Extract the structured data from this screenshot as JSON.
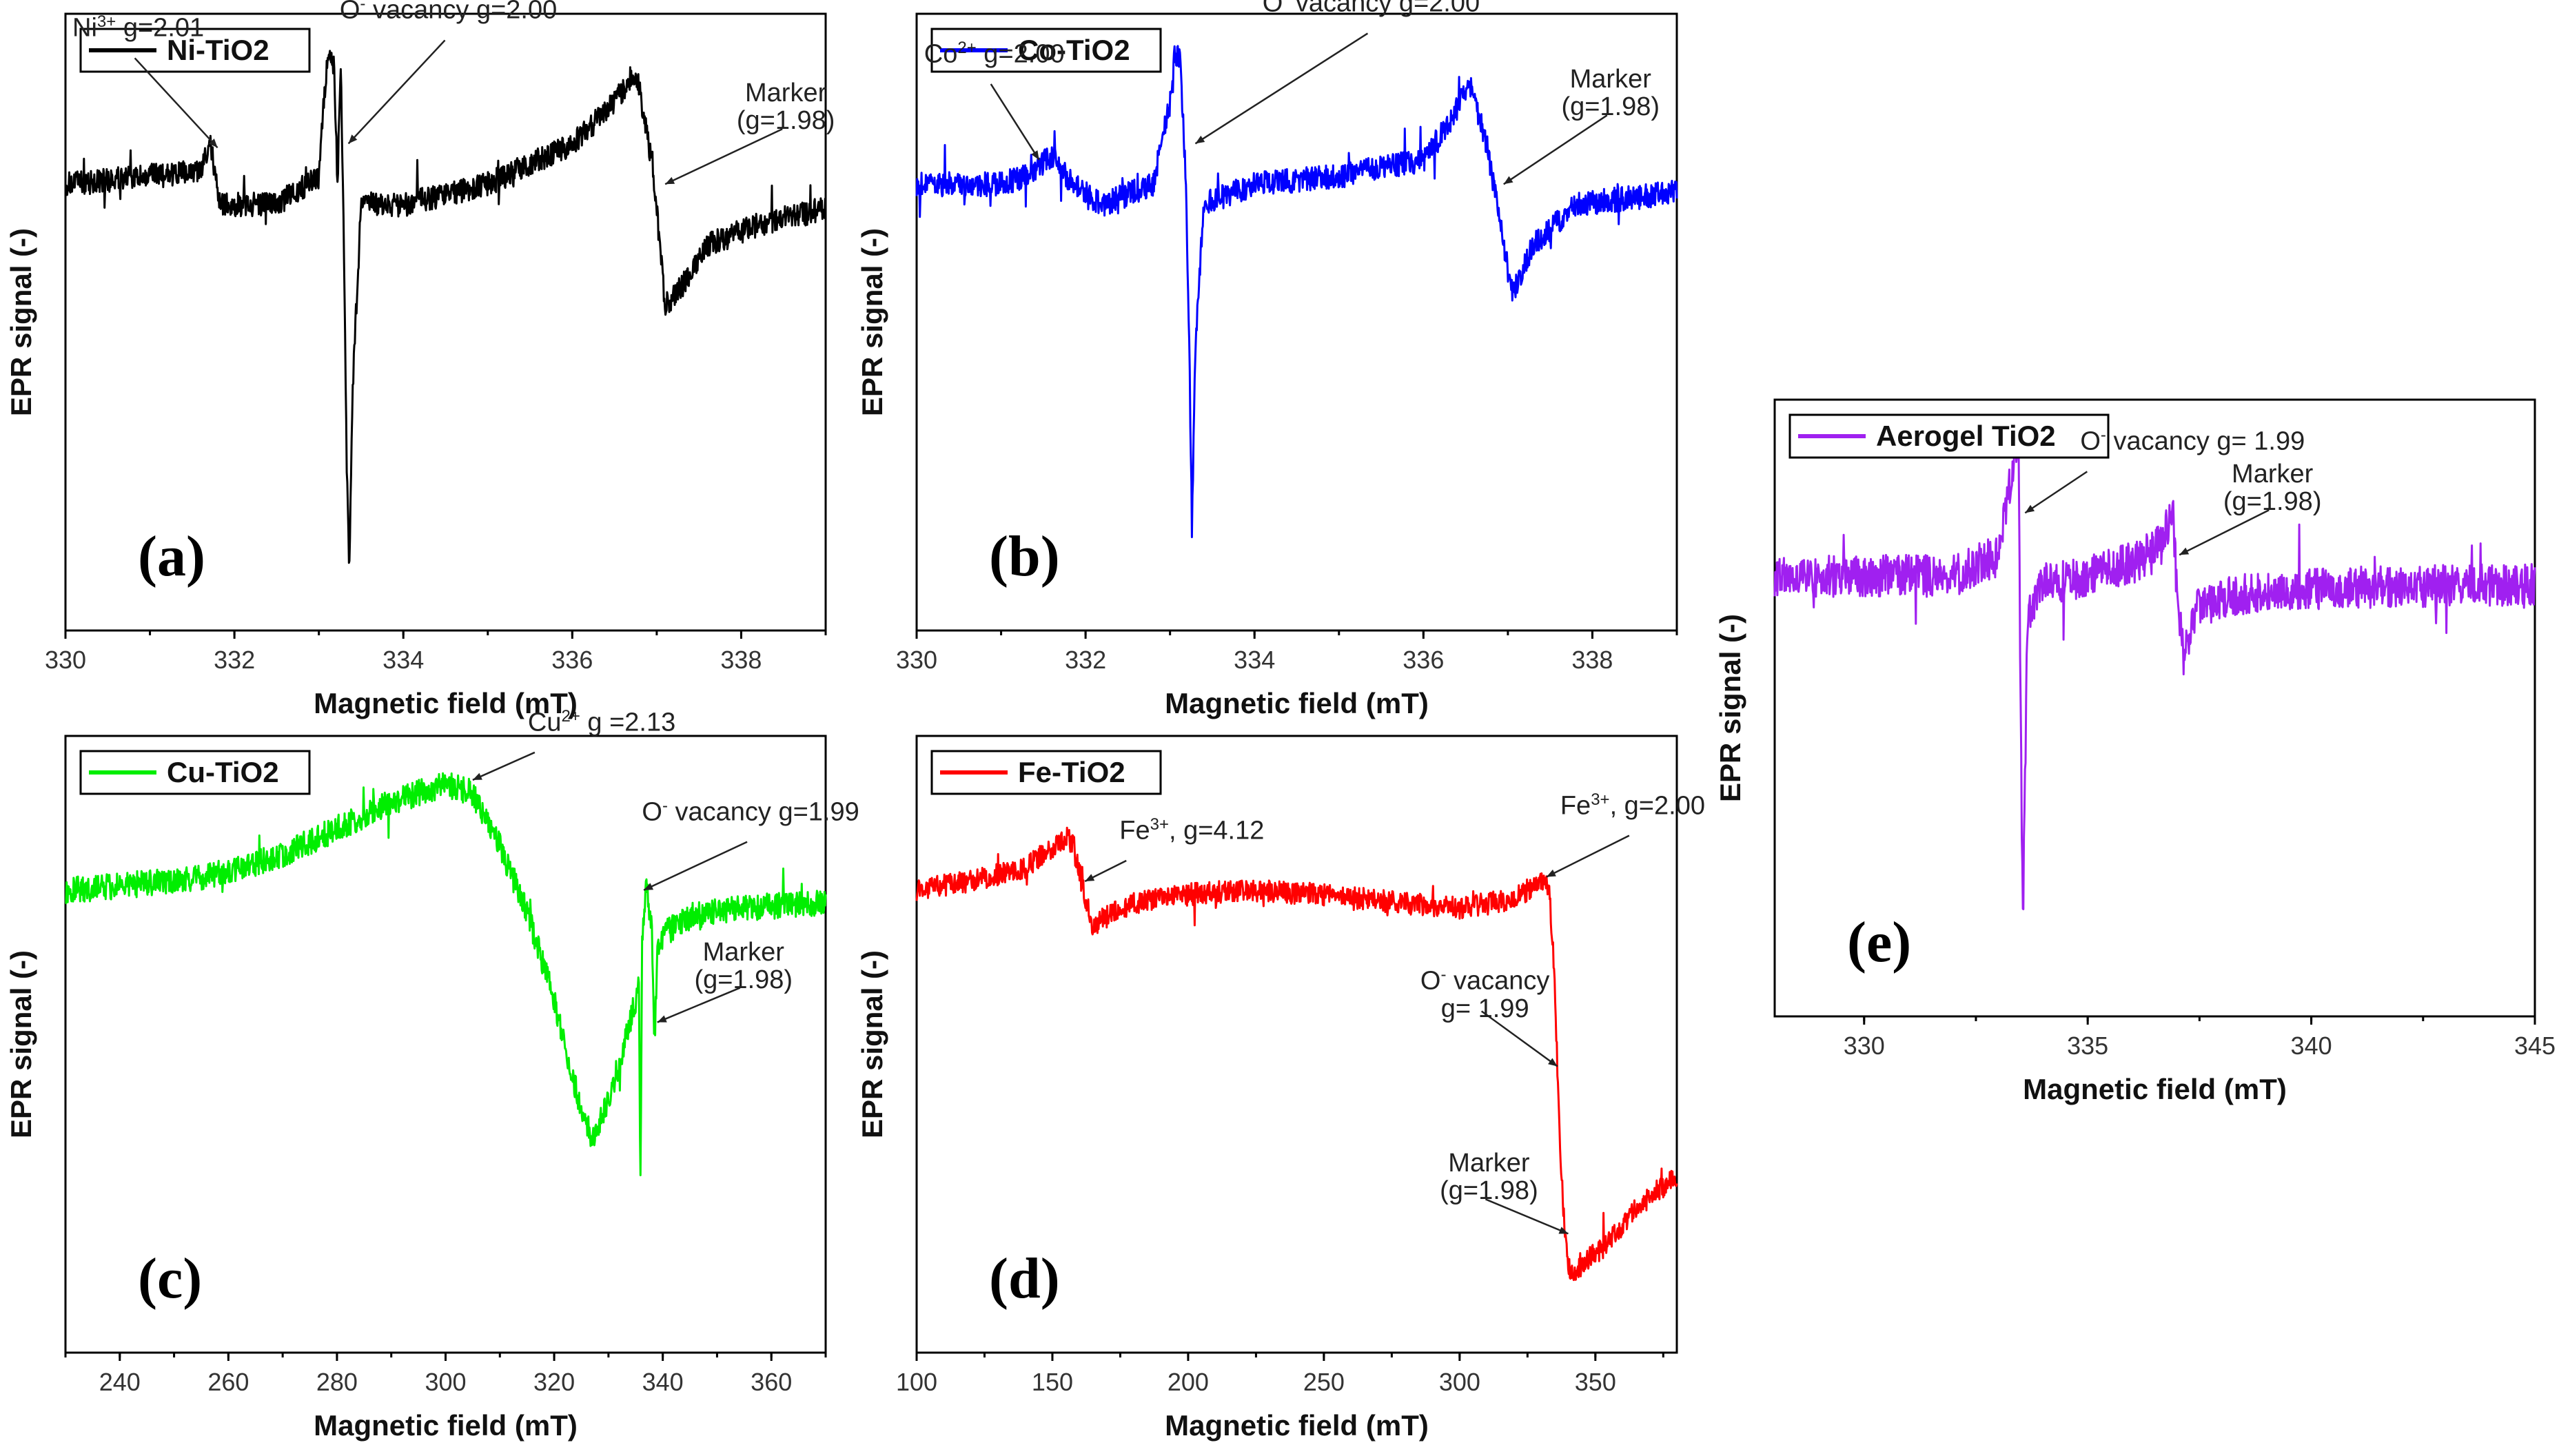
{
  "chart_data": [
    {
      "id": "a",
      "type": "line",
      "panel_label": "(a)",
      "legend": "Ni-TiO2",
      "color": "#000000",
      "xlabel": "Magnetic field (mT)",
      "ylabel": "EPR signal (-)",
      "xlim": [
        330,
        339
      ],
      "ylim": [
        -1.1,
        0.42
      ],
      "xticks": [
        330,
        332,
        334,
        336,
        338
      ],
      "noise": 0.03,
      "points": [
        [
          330,
          0.0
        ],
        [
          331,
          0.02
        ],
        [
          331.6,
          0.03
        ],
        [
          331.72,
          0.1
        ],
        [
          331.82,
          -0.05
        ],
        [
          332.5,
          -0.05
        ],
        [
          333.0,
          0.02
        ],
        [
          333.1,
          0.32
        ],
        [
          333.18,
          0.3
        ],
        [
          333.22,
          0.0
        ],
        [
          333.26,
          0.3
        ],
        [
          333.3,
          -0.2
        ],
        [
          333.33,
          -0.7
        ],
        [
          333.36,
          -0.95
        ],
        [
          333.4,
          -0.5
        ],
        [
          333.5,
          -0.05
        ],
        [
          334,
          -0.05
        ],
        [
          335,
          0.0
        ],
        [
          336,
          0.1
        ],
        [
          336.5,
          0.2
        ],
        [
          336.75,
          0.28
        ],
        [
          336.95,
          0.05
        ],
        [
          337.1,
          -0.3
        ],
        [
          337.3,
          -0.25
        ],
        [
          337.6,
          -0.15
        ],
        [
          338.2,
          -0.1
        ],
        [
          339,
          -0.06
        ]
      ],
      "annotations": [
        {
          "html": "Ni<sup>3+</sup> g=2.01",
          "x": 331.8,
          "y": 0.09
        },
        {
          "html": "O<sup>-</sup> vacancy g=2.00",
          "x": 333.35,
          "y": 0.1
        },
        {
          "html": "Marker<br>(g=1.98)",
          "x": 337.1,
          "y": 0.0
        }
      ]
    },
    {
      "id": "b",
      "type": "line",
      "panel_label": "(b)",
      "legend": "Co-TiO2",
      "color": "#0000ff",
      "xlabel": "Magnetic field (mT)",
      "ylabel": "EPR signal (-)",
      "xlim": [
        330,
        339
      ],
      "ylim": [
        -1.1,
        0.42
      ],
      "xticks": [
        330,
        332,
        334,
        336,
        338
      ],
      "noise": 0.03,
      "points": [
        [
          330,
          0.0
        ],
        [
          331,
          0.0
        ],
        [
          331.3,
          0.02
        ],
        [
          331.6,
          0.07
        ],
        [
          331.85,
          0.0
        ],
        [
          332.2,
          -0.05
        ],
        [
          332.8,
          0.0
        ],
        [
          333.0,
          0.2
        ],
        [
          333.05,
          0.33
        ],
        [
          333.12,
          0.3
        ],
        [
          333.18,
          0.05
        ],
        [
          333.22,
          -0.3
        ],
        [
          333.26,
          -0.85
        ],
        [
          333.3,
          -0.4
        ],
        [
          333.4,
          -0.05
        ],
        [
          334,
          0.0
        ],
        [
          335,
          0.02
        ],
        [
          336,
          0.06
        ],
        [
          336.3,
          0.15
        ],
        [
          336.55,
          0.25
        ],
        [
          336.75,
          0.1
        ],
        [
          336.95,
          -0.15
        ],
        [
          337.05,
          -0.27
        ],
        [
          337.3,
          -0.15
        ],
        [
          337.8,
          -0.05
        ],
        [
          339,
          -0.02
        ]
      ],
      "annotations": [
        {
          "html": "Co<sup>2+</sup> g=2.00",
          "x": 331.45,
          "y": 0.06
        },
        {
          "html": "O<sup>-</sup> vacancy g=2.00",
          "x": 333.3,
          "y": 0.1
        },
        {
          "html": "Marker<br>(g=1.98)",
          "x": 336.95,
          "y": 0.0
        }
      ]
    },
    {
      "id": "c",
      "type": "line",
      "panel_label": "(c)",
      "legend": "Cu-TiO2",
      "color": "#00ee00",
      "xlabel": "Magnetic field (mT)",
      "ylabel": "EPR signal (-)",
      "xlim": [
        230,
        370
      ],
      "ylim": [
        -1.05,
        0.35
      ],
      "xticks": [
        240,
        260,
        280,
        300,
        320,
        340,
        360
      ],
      "noise": 0.03,
      "points": [
        [
          230,
          0.0
        ],
        [
          250,
          0.02
        ],
        [
          260,
          0.04
        ],
        [
          270,
          0.08
        ],
        [
          280,
          0.14
        ],
        [
          290,
          0.2
        ],
        [
          300,
          0.24
        ],
        [
          305,
          0.22
        ],
        [
          310,
          0.1
        ],
        [
          315,
          -0.05
        ],
        [
          320,
          -0.25
        ],
        [
          325,
          -0.5
        ],
        [
          327,
          -0.56
        ],
        [
          330,
          -0.48
        ],
        [
          334,
          -0.3
        ],
        [
          335.6,
          -0.22
        ],
        [
          335.9,
          -0.7
        ],
        [
          336.2,
          -0.1
        ],
        [
          337,
          0.02
        ],
        [
          338,
          -0.1
        ],
        [
          338.5,
          -0.35
        ],
        [
          339,
          -0.15
        ],
        [
          340,
          -0.1
        ],
        [
          345,
          -0.06
        ],
        [
          355,
          -0.04
        ],
        [
          370,
          -0.03
        ]
      ],
      "annotations": [
        {
          "html": "Cu<sup>2+</sup> g =2.13",
          "x": 305,
          "y": 0.25
        },
        {
          "html": "O<sup>-</sup> vacancy g=1.99",
          "x": 336.5,
          "y": 0.0
        },
        {
          "html": "Marker<br>(g=1.98)",
          "x": 339,
          "y": -0.3
        }
      ]
    },
    {
      "id": "d",
      "type": "line",
      "panel_label": "(d)",
      "legend": "Fe-TiO2",
      "color": "#ff0000",
      "xlabel": "Magnetic field (mT)",
      "ylabel": "EPR signal (-)",
      "xlim": [
        100,
        380
      ],
      "ylim": [
        -1.05,
        0.35
      ],
      "xticks": [
        100,
        150,
        200,
        250,
        300,
        350
      ],
      "noise": 0.025,
      "points": [
        [
          100,
          0.0
        ],
        [
          120,
          0.02
        ],
        [
          140,
          0.05
        ],
        [
          155,
          0.12
        ],
        [
          158,
          0.1
        ],
        [
          162,
          -0.02
        ],
        [
          165,
          -0.08
        ],
        [
          170,
          -0.06
        ],
        [
          180,
          -0.03
        ],
        [
          200,
          -0.01
        ],
        [
          220,
          0.0
        ],
        [
          250,
          -0.01
        ],
        [
          280,
          -0.03
        ],
        [
          300,
          -0.04
        ],
        [
          320,
          -0.02
        ],
        [
          330,
          0.02
        ],
        [
          333,
          0.0
        ],
        [
          335,
          -0.2
        ],
        [
          337,
          -0.6
        ],
        [
          339,
          -0.8
        ],
        [
          341,
          -0.88
        ],
        [
          345,
          -0.85
        ],
        [
          355,
          -0.8
        ],
        [
          365,
          -0.72
        ],
        [
          380,
          -0.65
        ]
      ],
      "annotations": [
        {
          "html": "Fe<sup>3+</sup>, g=4.12",
          "x": 162,
          "y": 0.02
        },
        {
          "html": "Fe<sup>3+</sup>, g=2.00",
          "x": 332,
          "y": 0.03
        },
        {
          "html": "O<sup>-</sup> vacancy<br>g= 1.99",
          "x": 336,
          "y": -0.4
        },
        {
          "html": "Marker<br>(g=1.98)",
          "x": 340,
          "y": -0.78
        }
      ]
    },
    {
      "id": "e",
      "type": "line",
      "panel_label": "(e)",
      "legend": "Aerogel TiO2",
      "color": "#a020f0",
      "xlabel": "Magnetic field (mT)",
      "ylabel": "EPR signal (-)",
      "xlim": [
        328,
        345
      ],
      "ylim": [
        -1.05,
        0.42
      ],
      "xticks": [
        330,
        335,
        340,
        345
      ],
      "noise": 0.05,
      "points": [
        [
          328,
          0.0
        ],
        [
          330,
          0.0
        ],
        [
          332,
          0.0
        ],
        [
          333,
          0.05
        ],
        [
          333.3,
          0.25
        ],
        [
          333.45,
          0.35
        ],
        [
          333.5,
          -0.3
        ],
        [
          333.55,
          -0.85
        ],
        [
          333.65,
          -0.1
        ],
        [
          334,
          -0.02
        ],
        [
          335,
          0.0
        ],
        [
          336,
          0.03
        ],
        [
          336.7,
          0.08
        ],
        [
          336.9,
          0.18
        ],
        [
          337.0,
          -0.05
        ],
        [
          337.15,
          -0.2
        ],
        [
          337.4,
          -0.08
        ],
        [
          338,
          -0.05
        ],
        [
          340,
          -0.03
        ],
        [
          345,
          -0.02
        ]
      ],
      "annotations": [
        {
          "html": "O<sup>-</sup> vacancy g= 1.99",
          "x": 333.6,
          "y": 0.15
        },
        {
          "html": "Marker<br>(g=1.98)",
          "x": 337.05,
          "y": 0.05
        }
      ]
    }
  ]
}
